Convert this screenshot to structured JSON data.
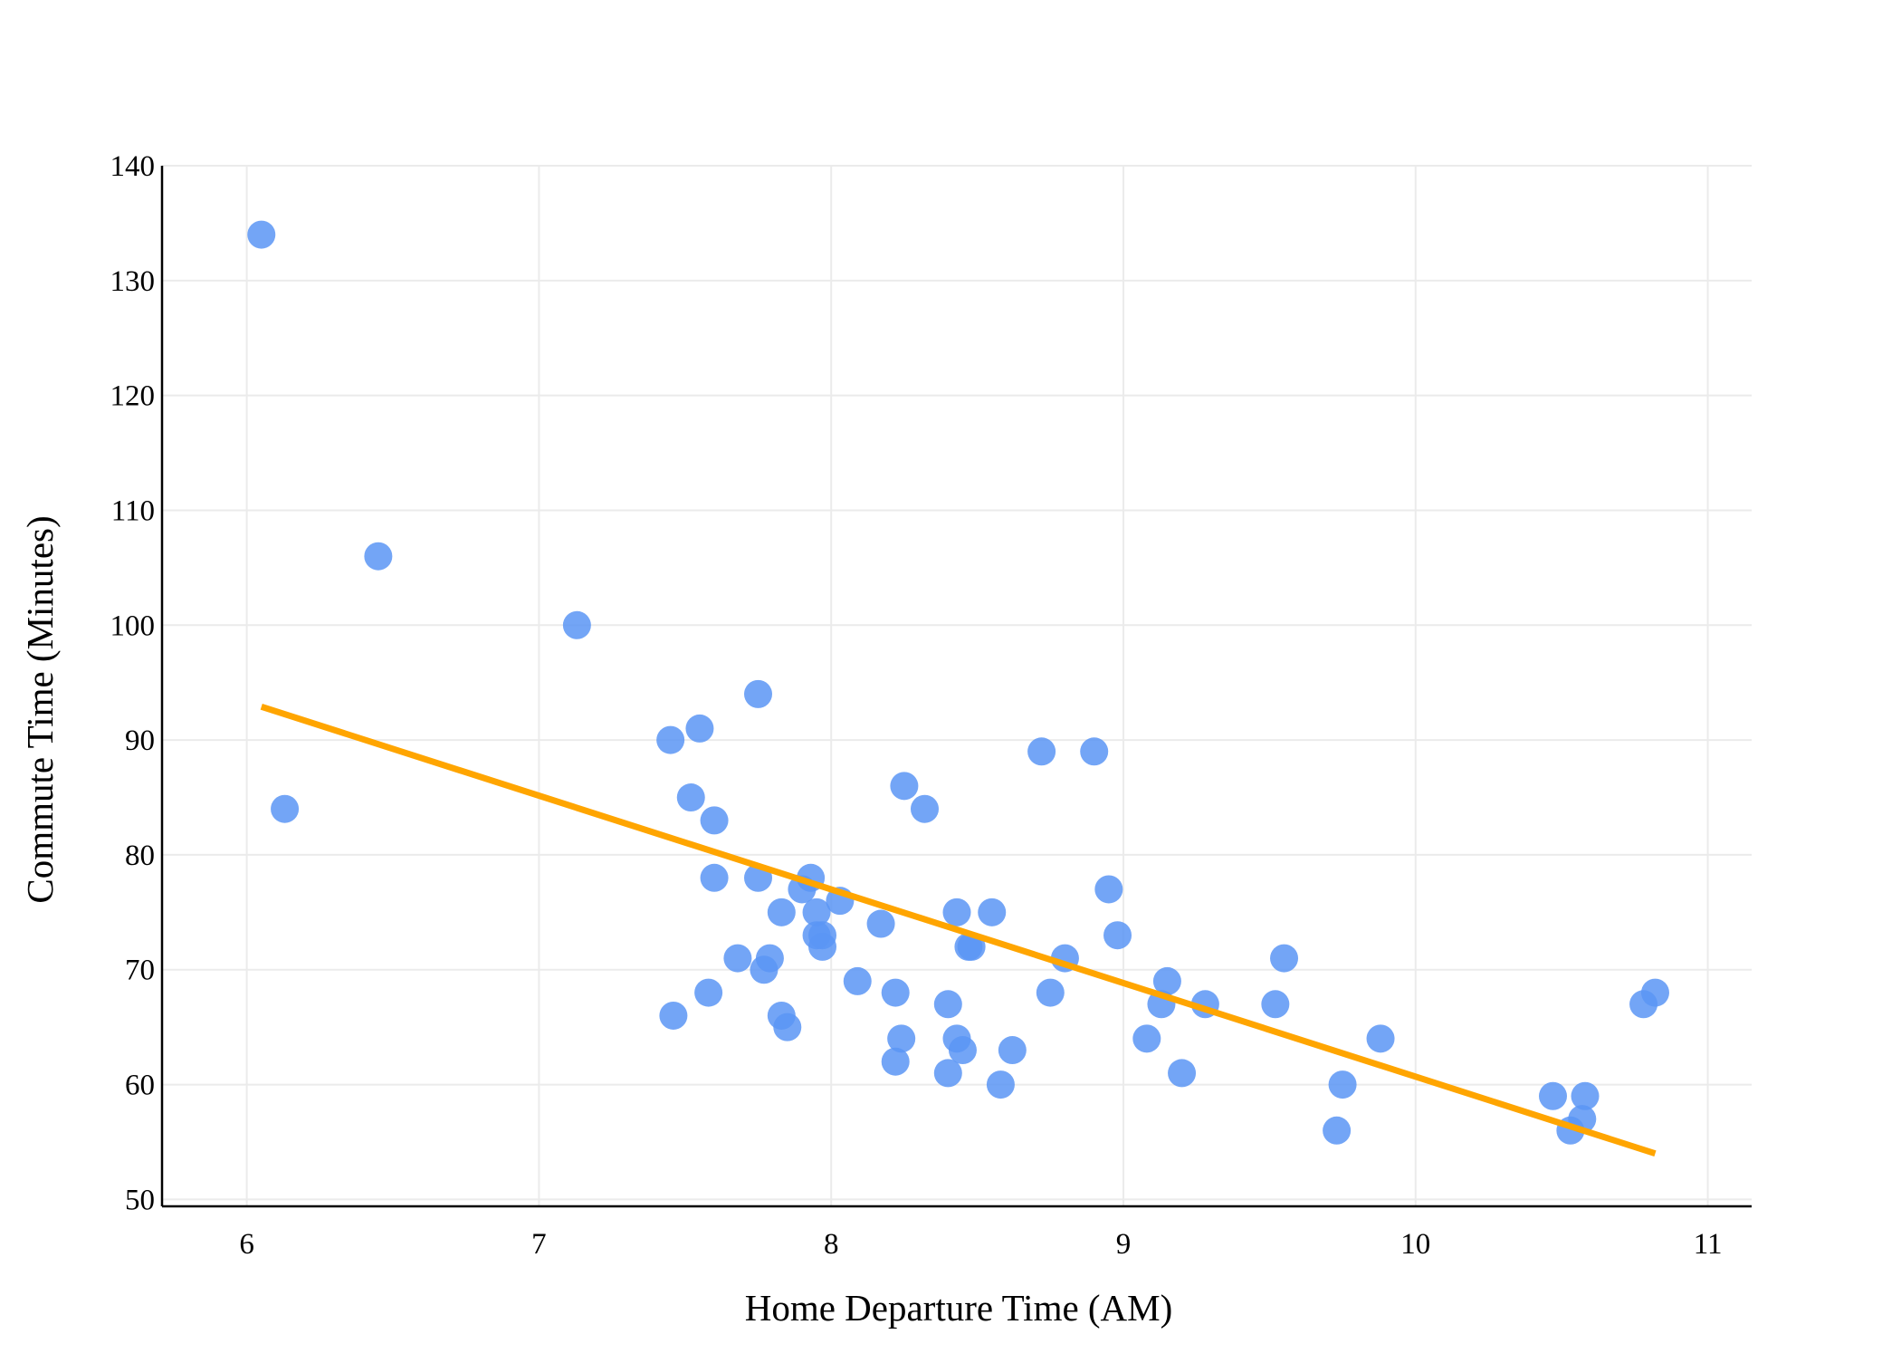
{
  "chart_data": {
    "type": "scatter",
    "title": "",
    "xlabel": "Home Departure Time (AM)",
    "ylabel": "Commute Time (Minutes)",
    "xlim": [
      5.71,
      11.15
    ],
    "ylim": [
      49.4,
      140
    ],
    "xticks": [
      6,
      7,
      8,
      9,
      10,
      11
    ],
    "yticks": [
      50,
      60,
      70,
      80,
      90,
      100,
      110,
      120,
      130,
      140
    ],
    "grid": true,
    "legend": "none",
    "colors": {
      "points": "#5b95f5",
      "trend_line": "#ffa500",
      "grid": "#ebebeb",
      "axis": "#000000"
    },
    "series": [
      {
        "type": "scatter",
        "points": [
          {
            "x": 6.05,
            "y": 134
          },
          {
            "x": 6.13,
            "y": 84
          },
          {
            "x": 6.45,
            "y": 106
          },
          {
            "x": 7.13,
            "y": 100
          },
          {
            "x": 7.45,
            "y": 90
          },
          {
            "x": 7.46,
            "y": 66
          },
          {
            "x": 7.52,
            "y": 85
          },
          {
            "x": 7.55,
            "y": 91
          },
          {
            "x": 7.58,
            "y": 68
          },
          {
            "x": 7.6,
            "y": 83
          },
          {
            "x": 7.6,
            "y": 78
          },
          {
            "x": 7.68,
            "y": 71
          },
          {
            "x": 7.75,
            "y": 94
          },
          {
            "x": 7.75,
            "y": 78
          },
          {
            "x": 7.77,
            "y": 70
          },
          {
            "x": 7.79,
            "y": 71
          },
          {
            "x": 7.83,
            "y": 75
          },
          {
            "x": 7.83,
            "y": 66
          },
          {
            "x": 7.85,
            "y": 65
          },
          {
            "x": 7.9,
            "y": 77
          },
          {
            "x": 7.93,
            "y": 78
          },
          {
            "x": 7.95,
            "y": 75
          },
          {
            "x": 7.95,
            "y": 73
          },
          {
            "x": 7.97,
            "y": 73
          },
          {
            "x": 7.97,
            "y": 72
          },
          {
            "x": 8.03,
            "y": 76
          },
          {
            "x": 8.09,
            "y": 69
          },
          {
            "x": 8.17,
            "y": 74
          },
          {
            "x": 8.22,
            "y": 68
          },
          {
            "x": 8.22,
            "y": 62
          },
          {
            "x": 8.24,
            "y": 64
          },
          {
            "x": 8.25,
            "y": 86
          },
          {
            "x": 8.32,
            "y": 84
          },
          {
            "x": 8.4,
            "y": 67
          },
          {
            "x": 8.4,
            "y": 61
          },
          {
            "x": 8.43,
            "y": 75
          },
          {
            "x": 8.43,
            "y": 64
          },
          {
            "x": 8.45,
            "y": 63
          },
          {
            "x": 8.47,
            "y": 72
          },
          {
            "x": 8.48,
            "y": 72
          },
          {
            "x": 8.55,
            "y": 75
          },
          {
            "x": 8.58,
            "y": 60
          },
          {
            "x": 8.62,
            "y": 63
          },
          {
            "x": 8.72,
            "y": 89
          },
          {
            "x": 8.75,
            "y": 68
          },
          {
            "x": 8.8,
            "y": 71
          },
          {
            "x": 8.9,
            "y": 89
          },
          {
            "x": 8.95,
            "y": 77
          },
          {
            "x": 8.98,
            "y": 73
          },
          {
            "x": 9.08,
            "y": 64
          },
          {
            "x": 9.13,
            "y": 67
          },
          {
            "x": 9.15,
            "y": 69
          },
          {
            "x": 9.2,
            "y": 61
          },
          {
            "x": 9.28,
            "y": 67
          },
          {
            "x": 9.52,
            "y": 67
          },
          {
            "x": 9.55,
            "y": 71
          },
          {
            "x": 9.73,
            "y": 56
          },
          {
            "x": 9.75,
            "y": 60
          },
          {
            "x": 9.88,
            "y": 64
          },
          {
            "x": 10.47,
            "y": 59
          },
          {
            "x": 10.53,
            "y": 56
          },
          {
            "x": 10.57,
            "y": 57
          },
          {
            "x": 10.58,
            "y": 59
          },
          {
            "x": 10.78,
            "y": 67
          },
          {
            "x": 10.82,
            "y": 68
          }
        ]
      },
      {
        "type": "line",
        "points": [
          {
            "x": 6.05,
            "y": 92.9
          },
          {
            "x": 10.82,
            "y": 54.0
          }
        ]
      }
    ]
  }
}
